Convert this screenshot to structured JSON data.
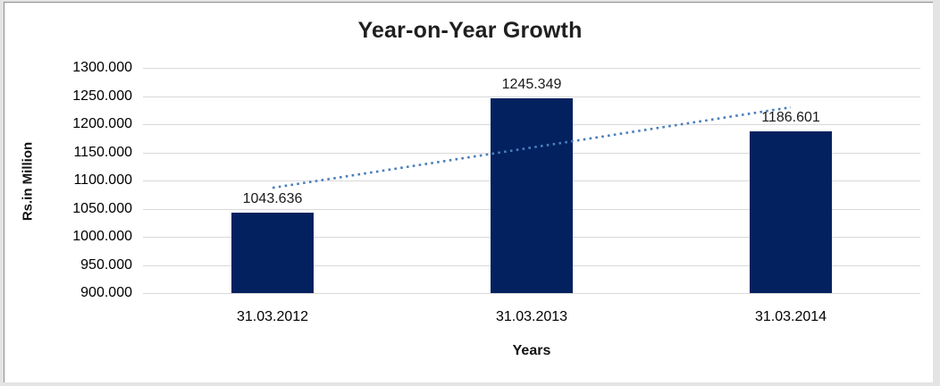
{
  "chart_data": {
    "type": "bar",
    "title": "Year-on-Year Growth",
    "xlabel": "Years",
    "ylabel": "Rs.in Million",
    "categories": [
      "31.03.2012",
      "31.03.2013",
      "31.03.2014"
    ],
    "values": [
      1043.636,
      1245.349,
      1186.601
    ],
    "data_labels": [
      "1043.636",
      "1245.349",
      "1186.601"
    ],
    "ylim": [
      900,
      1300
    ],
    "ytick_step": 50,
    "yticks": [
      "900.000",
      "950.000",
      "1000.000",
      "1050.000",
      "1100.000",
      "1150.000",
      "1200.000",
      "1250.000",
      "1300.000"
    ],
    "grid": true,
    "legend": "none",
    "bar_color": "#04215f",
    "grid_color": "#d9d9d9",
    "trendline": {
      "type": "linear",
      "style": "dotted",
      "color": "#4a7ebb",
      "start_value": 1087.0,
      "end_value": 1230.0
    }
  }
}
